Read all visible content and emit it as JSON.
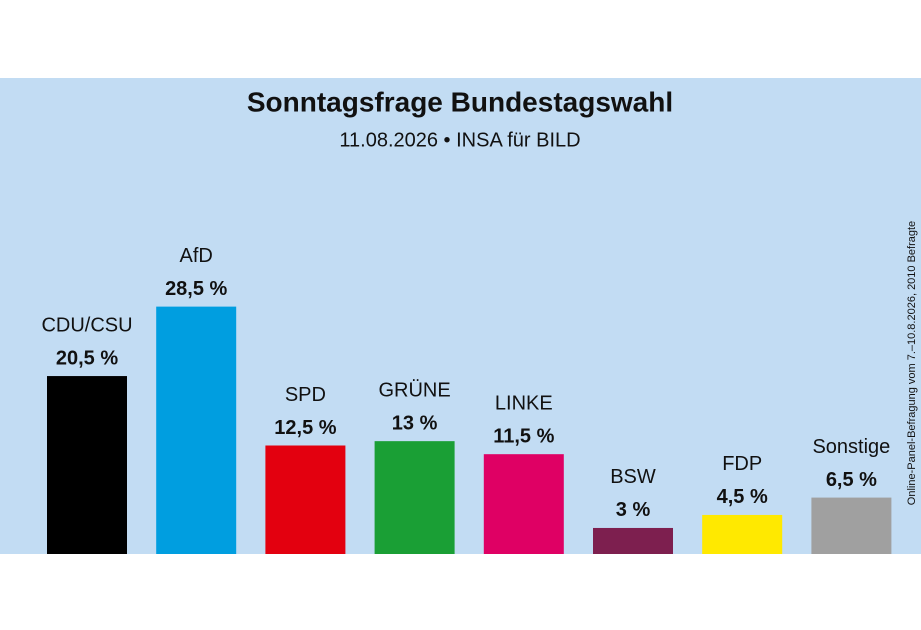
{
  "chart_data": {
    "type": "bar",
    "title": "Sonntagsfrage Bundestagswahl",
    "subtitle": "11.08.2026 • INSA für BILD",
    "note": "Online-Panel-Befragung vom 7.–10.8.2026, 2010 Befragte",
    "categories": [
      "CDU/CSU",
      "AfD",
      "SPD",
      "GRÜNE",
      "LINKE",
      "BSW",
      "FDP",
      "Sonstige"
    ],
    "values": [
      20.5,
      28.5,
      12.5,
      13,
      11.5,
      3,
      4.5,
      6.5
    ],
    "value_labels": [
      "20,5 %",
      "28,5 %",
      "12,5 %",
      "13 %",
      "11,5 %",
      "3 %",
      "4,5 %",
      "6,5 %"
    ],
    "colors": [
      "#000000",
      "#009ee0",
      "#e3000f",
      "#1a9f35",
      "#df0064",
      "#7d1f4f",
      "#ffe900",
      "#a0a0a0"
    ]
  }
}
